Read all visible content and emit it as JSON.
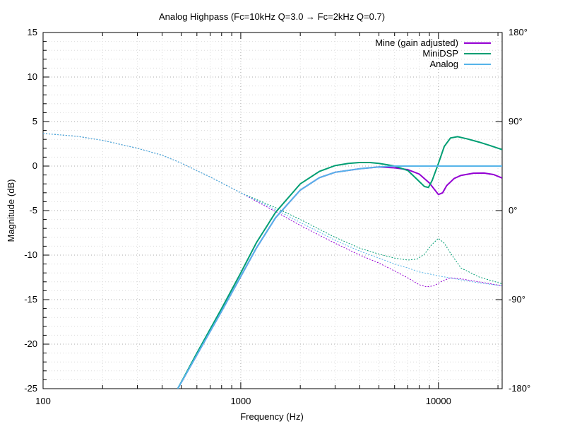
{
  "chart_data": {
    "type": "line",
    "title": "Analog Highpass (Fc=10kHz Q=3.0 → Fc=2kHz Q=0.7)",
    "xlabel": "Frequency (Hz)",
    "ylabel": "Magnitude (dB)",
    "x_scale": "log",
    "xlim": [
      100,
      21000
    ],
    "ylim": [
      -25,
      15
    ],
    "y2lim": [
      -180,
      180
    ],
    "grid": true,
    "legend_position": "top-right",
    "x_ticks": [
      {
        "value": 100,
        "label": "100"
      },
      {
        "value": 1000,
        "label": "1000"
      },
      {
        "value": 10000,
        "label": "10000"
      }
    ],
    "y_ticks": [
      {
        "value": 15,
        "label": "15"
      },
      {
        "value": 10,
        "label": "10"
      },
      {
        "value": 5,
        "label": "5"
      },
      {
        "value": 0,
        "label": "0"
      },
      {
        "value": -5,
        "label": "-5"
      },
      {
        "value": -10,
        "label": "-10"
      },
      {
        "value": -15,
        "label": "-15"
      },
      {
        "value": -20,
        "label": "-20"
      },
      {
        "value": -25,
        "label": "-25"
      }
    ],
    "y2_ticks": [
      {
        "value": 180,
        "label": "180°"
      },
      {
        "value": 90,
        "label": "90°"
      },
      {
        "value": 0,
        "label": "0°"
      },
      {
        "value": -90,
        "label": "-90°"
      },
      {
        "value": -180,
        "label": "-180°"
      }
    ],
    "series": [
      {
        "name": "Mine (gain adjusted)",
        "color": "#9400d3",
        "magnitude": [
          [
            480,
            -25
          ],
          [
            600,
            -21.2
          ],
          [
            800,
            -16.3
          ],
          [
            1000,
            -12.4
          ],
          [
            1200,
            -9.2
          ],
          [
            1500,
            -5.8
          ],
          [
            2000,
            -2.7
          ],
          [
            2500,
            -1.3
          ],
          [
            3000,
            -0.7
          ],
          [
            4000,
            -0.3
          ],
          [
            5000,
            -0.1
          ],
          [
            6000,
            -0.2
          ],
          [
            7000,
            -0.4
          ],
          [
            8000,
            -0.9
          ],
          [
            9000,
            -1.9
          ],
          [
            10000,
            -3.2
          ],
          [
            10500,
            -3
          ],
          [
            11000,
            -2.2
          ],
          [
            12000,
            -1.4
          ],
          [
            13000,
            -1.05
          ],
          [
            15000,
            -0.8
          ],
          [
            17000,
            -0.78
          ],
          [
            19000,
            -0.95
          ],
          [
            21000,
            -1.35
          ]
        ],
        "phase": [
          [
            100,
            78
          ],
          [
            150,
            75
          ],
          [
            200,
            71
          ],
          [
            300,
            63
          ],
          [
            400,
            56
          ],
          [
            500,
            48
          ],
          [
            700,
            34
          ],
          [
            1000,
            18
          ],
          [
            1500,
            -1
          ],
          [
            2000,
            -15
          ],
          [
            3000,
            -33
          ],
          [
            4000,
            -45
          ],
          [
            5000,
            -53
          ],
          [
            6000,
            -61
          ],
          [
            7000,
            -68
          ],
          [
            8000,
            -75
          ],
          [
            8700,
            -77
          ],
          [
            9500,
            -76
          ],
          [
            10500,
            -71
          ],
          [
            11500,
            -68
          ],
          [
            13000,
            -69
          ],
          [
            16000,
            -72
          ],
          [
            21000,
            -76
          ]
        ]
      },
      {
        "name": "MiniDSP",
        "color": "#009e73",
        "magnitude": [
          [
            480,
            -25
          ],
          [
            600,
            -21
          ],
          [
            800,
            -16
          ],
          [
            1000,
            -12
          ],
          [
            1200,
            -8.6
          ],
          [
            1500,
            -5.2
          ],
          [
            2000,
            -2
          ],
          [
            2500,
            -0.6
          ],
          [
            3000,
            0.05
          ],
          [
            3500,
            0.3
          ],
          [
            4000,
            0.4
          ],
          [
            4500,
            0.4
          ],
          [
            5000,
            0.3
          ],
          [
            5500,
            0.15
          ],
          [
            6000,
            0
          ],
          [
            7000,
            -0.5
          ],
          [
            7800,
            -1.5
          ],
          [
            8500,
            -2.3
          ],
          [
            8900,
            -2.4
          ],
          [
            9300,
            -1.6
          ],
          [
            10000,
            0.3
          ],
          [
            10700,
            2.2
          ],
          [
            11500,
            3.15
          ],
          [
            12500,
            3.3
          ],
          [
            14000,
            3.05
          ],
          [
            16000,
            2.7
          ],
          [
            18000,
            2.35
          ],
          [
            21000,
            1.85
          ]
        ],
        "phase": [
          [
            100,
            78
          ],
          [
            150,
            75
          ],
          [
            200,
            71
          ],
          [
            300,
            63
          ],
          [
            400,
            56
          ],
          [
            500,
            48
          ],
          [
            700,
            34
          ],
          [
            1000,
            18
          ],
          [
            1500,
            3
          ],
          [
            2000,
            -9
          ],
          [
            3000,
            -27
          ],
          [
            4000,
            -38
          ],
          [
            5000,
            -44
          ],
          [
            6000,
            -48
          ],
          [
            7000,
            -50
          ],
          [
            7800,
            -49
          ],
          [
            8500,
            -44
          ],
          [
            9200,
            -35
          ],
          [
            10000,
            -28
          ],
          [
            10700,
            -33
          ],
          [
            11500,
            -43
          ],
          [
            13000,
            -58
          ],
          [
            16000,
            -67
          ],
          [
            21000,
            -74
          ]
        ]
      },
      {
        "name": "Analog",
        "color": "#56b4e9",
        "magnitude": [
          [
            480,
            -25
          ],
          [
            600,
            -21.2
          ],
          [
            800,
            -16.3
          ],
          [
            1000,
            -12.4
          ],
          [
            1200,
            -9.2
          ],
          [
            1500,
            -5.8
          ],
          [
            2000,
            -2.7
          ],
          [
            2500,
            -1.3
          ],
          [
            3000,
            -0.7
          ],
          [
            4000,
            -0.3
          ],
          [
            5000,
            -0.1
          ],
          [
            6000,
            0
          ],
          [
            8000,
            0
          ],
          [
            10000,
            0
          ],
          [
            21000,
            0
          ]
        ],
        "phase": [
          [
            100,
            78
          ],
          [
            150,
            75
          ],
          [
            200,
            71
          ],
          [
            300,
            63
          ],
          [
            400,
            56
          ],
          [
            500,
            48
          ],
          [
            700,
            34
          ],
          [
            1000,
            18
          ],
          [
            1500,
            1
          ],
          [
            2000,
            -12
          ],
          [
            3000,
            -30
          ],
          [
            4000,
            -41
          ],
          [
            5000,
            -48
          ],
          [
            6000,
            -54
          ],
          [
            7000,
            -58
          ],
          [
            8000,
            -62
          ],
          [
            10000,
            -66
          ],
          [
            13000,
            -70
          ],
          [
            16000,
            -73
          ],
          [
            21000,
            -76
          ]
        ]
      }
    ]
  }
}
